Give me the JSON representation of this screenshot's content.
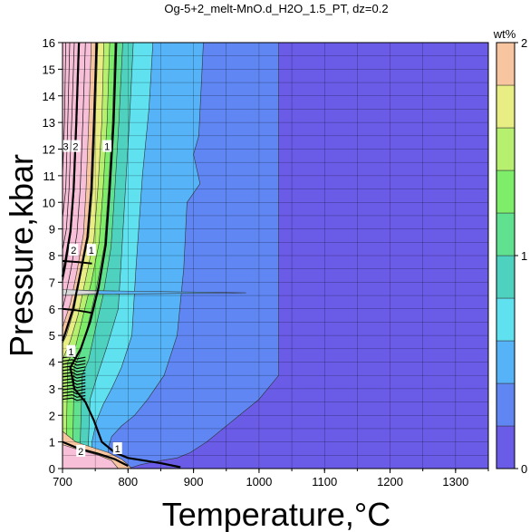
{
  "chart_data": {
    "type": "heatmap",
    "title": "Og-5+2_melt-MnO.d_H2O_1.5_PT, dz=0.2",
    "xlabel": "Temperature,°C",
    "ylabel": "Pressure,kbar",
    "xlim": [
      700,
      1350
    ],
    "ylim": [
      0,
      16
    ],
    "xticks": [
      "700",
      "800",
      "900",
      "1000",
      "1100",
      "1200",
      "1300"
    ],
    "yticks": [
      "0",
      "1",
      "2",
      "3",
      "4",
      "5",
      "6",
      "7",
      "8",
      "9",
      "10",
      "11",
      "12",
      "13",
      "14",
      "15",
      "16"
    ],
    "grid": true,
    "colorbar": {
      "label": "wt%",
      "range": [
        0,
        2
      ],
      "ticks": [
        "0",
        "1",
        "2"
      ],
      "step": 0.2,
      "colors": [
        "#6b5ce8",
        "#5f86f2",
        "#56b3f7",
        "#5fe1f0",
        "#4fd1c0",
        "#5fe190",
        "#7ded6a",
        "#b7f06f",
        "#e9ee84",
        "#f7c6a0",
        "#f7bfd8"
      ]
    },
    "contour_labels": [
      {
        "text": "3",
        "x": 705,
        "y": 12.1
      },
      {
        "text": "2",
        "x": 720,
        "y": 12.1
      },
      {
        "text": "1",
        "x": 768,
        "y": 12.1
      },
      {
        "text": "2",
        "x": 717,
        "y": 8.2
      },
      {
        "text": "1",
        "x": 744,
        "y": 8.2
      },
      {
        "text": "1",
        "x": 713,
        "y": 4.4
      },
      {
        "text": "2",
        "x": 728,
        "y": 0.65
      },
      {
        "text": "1",
        "x": 784,
        "y": 0.75
      }
    ]
  }
}
